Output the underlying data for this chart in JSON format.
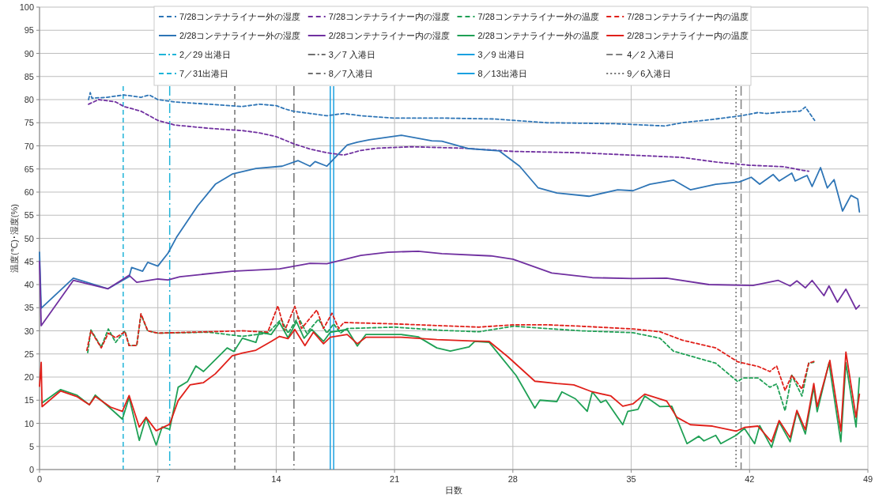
{
  "chart_data": {
    "type": "line",
    "xlabel": "日数",
    "ylabel": "温度(℃)･湿度(%)",
    "xlim": [
      0,
      49
    ],
    "ylim": [
      0,
      100
    ],
    "xticks": [
      0,
      7,
      14,
      21,
      28,
      35,
      42,
      49
    ],
    "yticks": [
      0,
      5,
      10,
      15,
      20,
      25,
      30,
      35,
      40,
      45,
      50,
      55,
      60,
      65,
      70,
      75,
      80,
      85,
      90,
      95,
      100
    ],
    "grid": true,
    "legend": "top",
    "series": [
      {
        "name": "7/28コンテナライナー外の湿度",
        "color": "#2e75b6",
        "line_style": "dashed",
        "x": [
          2.9,
          3.0,
          3.1,
          4,
          5,
          6,
          6.5,
          7,
          8,
          10,
          12,
          13,
          14,
          14.5,
          15,
          16,
          17,
          18,
          19,
          21,
          24,
          27,
          30,
          34,
          37,
          38,
          40,
          41.5,
          42.5,
          43,
          44,
          45,
          45.3,
          45.85
        ],
        "values": [
          80,
          81.5,
          80.3,
          80.5,
          81,
          80.5,
          81,
          80,
          79.5,
          79,
          78.5,
          79,
          78.7,
          78,
          77.5,
          77,
          76.5,
          77,
          76.5,
          76,
          76,
          75.8,
          75,
          74.8,
          74.3,
          75,
          75.8,
          76.5,
          77.2,
          77,
          77.3,
          77.5,
          78.4,
          75.5
        ]
      },
      {
        "name": "7/28コンテナライナー内の湿度",
        "color": "#7030a0",
        "line_style": "dashed",
        "x": [
          2.9,
          3.5,
          4.5,
          5,
          6,
          7,
          8,
          10,
          12,
          13,
          14,
          15,
          16,
          17,
          18,
          19,
          20,
          22,
          25,
          28,
          32,
          35,
          38,
          40,
          42,
          44,
          45,
          45.5
        ],
        "values": [
          79,
          80,
          79.5,
          78.5,
          77.5,
          75.5,
          74.5,
          73.8,
          73.3,
          72.8,
          72,
          70.5,
          69.3,
          68.5,
          68,
          69,
          69.5,
          69.8,
          69.5,
          68.8,
          68.5,
          68,
          67.5,
          66.5,
          65.8,
          65.5,
          64.8,
          64.5
        ]
      },
      {
        "name": "7/28コンテナライナー外の温度",
        "color": "#1fa055",
        "line_style": "dashed",
        "x": [
          2.85,
          3.04,
          3.65,
          4.07,
          4.5,
          5.05,
          5.3,
          5.75,
          6.0,
          6.4,
          7,
          10,
          12,
          13.5,
          14.3,
          14.7,
          15.3,
          15.8,
          16.5,
          17,
          17.4,
          17.8,
          18.2,
          21,
          23.8,
          26,
          28.05,
          30,
          32,
          35.1,
          36.7,
          37.5,
          40,
          41.3,
          41.6,
          42.5,
          43.2,
          43.6,
          44.1,
          44.5,
          45.1,
          45.5,
          45.8
        ],
        "values": [
          25.3,
          30.2,
          26.5,
          30.4,
          27.5,
          30,
          26.8,
          26.8,
          33.5,
          30,
          29.5,
          29.7,
          28.8,
          29.5,
          32.5,
          29.5,
          33,
          29.5,
          32.5,
          29.5,
          31.5,
          29.5,
          30.5,
          30.8,
          30.1,
          29.8,
          31,
          30.5,
          30,
          29.6,
          28.4,
          25.6,
          23,
          19,
          19.8,
          19.8,
          17.8,
          18.5,
          12.7,
          20.4,
          15.9,
          23,
          23.2
        ]
      },
      {
        "name": "7/28コンテナライナー内の温度",
        "color": "#e0201a",
        "line_style": "dashed",
        "x": [
          2.8,
          3.04,
          3.65,
          4.07,
          4.5,
          5.05,
          5.3,
          5.75,
          6.0,
          6.4,
          7,
          10,
          12,
          13.5,
          14.1,
          14.5,
          15.1,
          15.5,
          16.4,
          16.8,
          17.3,
          17.7,
          18,
          21,
          23.8,
          26,
          28,
          30,
          32,
          35.1,
          36.7,
          38,
          40,
          41.3,
          42.5,
          43.2,
          43.6,
          44.1,
          44.5,
          45.1,
          45.5,
          45.9
        ],
        "values": [
          25.8,
          30,
          26.3,
          29.5,
          28.5,
          29.8,
          26.8,
          26.8,
          33.7,
          30,
          29.5,
          29.8,
          30,
          29.7,
          35.4,
          30,
          35.3,
          30.5,
          34.5,
          30.5,
          33.8,
          30.5,
          31.8,
          31.5,
          31.1,
          30.8,
          31.3,
          31.3,
          31,
          30.4,
          29.8,
          28,
          26.3,
          23.3,
          22.3,
          21.2,
          22.4,
          17.1,
          20.4,
          17.4,
          23,
          23.5
        ]
      },
      {
        "name": "2/28コンテナライナー外の湿度",
        "color": "#2e75b6",
        "line_style": "solid",
        "x": [
          0,
          0.1,
          2.0,
          4.05,
          5.3,
          5.45,
          6.1,
          6.4,
          7.0,
          7.6,
          8.1,
          9.35,
          10.4,
          11.4,
          12.8,
          14.35,
          15.3,
          16.0,
          16.3,
          17.0,
          18.2,
          18.8,
          19.5,
          21.4,
          23.2,
          23.8,
          25.4,
          27.2,
          28.4,
          29.5,
          30.6,
          32.5,
          34.2,
          35.1,
          36.1,
          37.5,
          38.5,
          40,
          41.4,
          42.1,
          42.6,
          43.4,
          43.75,
          44.5,
          44.7,
          45.4,
          45.7,
          46.2,
          46.6,
          47.0,
          47.5,
          48.0,
          48.4,
          48.5
        ],
        "values": [
          47,
          34.9,
          41.4,
          39.1,
          41.7,
          43.7,
          42.9,
          44.8,
          44,
          46.8,
          50.2,
          57,
          61.7,
          63.9,
          65.1,
          65.6,
          66.8,
          65.6,
          66.6,
          65.6,
          70.2,
          70.8,
          71.3,
          72.3,
          71.1,
          71,
          69.4,
          68.9,
          65.6,
          60.9,
          59.8,
          59.1,
          60.5,
          60.3,
          61.7,
          62.6,
          60.5,
          61.7,
          62.2,
          63.2,
          61.7,
          63.8,
          62.4,
          64.1,
          62.4,
          63.6,
          61.2,
          65.3,
          60.9,
          62.7,
          55.9,
          59.3,
          58.5,
          55.7
        ]
      },
      {
        "name": "2/28コンテナライナー内の湿度",
        "color": "#7030a0",
        "line_style": "solid",
        "x": [
          0,
          0.1,
          2.0,
          4.05,
          5.3,
          5.75,
          7.0,
          7.6,
          8.3,
          11.4,
          14.2,
          16.0,
          17.0,
          19.0,
          20.6,
          22.4,
          23.8,
          26.7,
          28.0,
          30.3,
          32.7,
          35.1,
          37.1,
          39.6,
          42.2,
          43.7,
          44.4,
          44.8,
          45.3,
          45.7,
          46.4,
          46.7,
          47.2,
          47.7,
          48.3,
          48.5
        ],
        "values": [
          45,
          31.1,
          40.9,
          39.1,
          42,
          40.5,
          41.2,
          41,
          41.7,
          42.9,
          43.4,
          44.6,
          44.5,
          46.3,
          47,
          47.2,
          46.7,
          46.2,
          45.5,
          42.5,
          41.5,
          41.3,
          41.4,
          40,
          39.8,
          40.9,
          39.7,
          40.8,
          39.3,
          40.9,
          37.6,
          39.7,
          36.2,
          39,
          34.7,
          35.5
        ]
      },
      {
        "name": "2/28コンテナライナー外の温度",
        "color": "#1fa055",
        "line_style": "solid",
        "x": [
          0.15,
          1.25,
          2.2,
          2.95,
          3.3,
          4.2,
          4.9,
          5.3,
          5.9,
          6.3,
          6.9,
          7.25,
          7.7,
          8.2,
          8.75,
          9.25,
          9.7,
          11.1,
          11.5,
          12.0,
          12.8,
          13.0,
          13.7,
          14.2,
          14.7,
          15.2,
          15.65,
          16.1,
          16.8,
          17.2,
          18.2,
          18.8,
          19.3,
          21.4,
          22.4,
          23.5,
          24.3,
          25.4,
          25.75,
          26.6,
          27.2,
          28.2,
          29.3,
          29.6,
          30.6,
          30.9,
          31.7,
          32.4,
          32.7,
          33.2,
          33.5,
          34.5,
          34.8,
          35.4,
          35.8,
          36.7,
          37.4,
          38.3,
          39.0,
          39.3,
          40.0,
          40.3,
          41.2,
          41.7,
          42.3,
          42.6,
          43.3,
          43.75,
          44.4,
          44.8,
          45.3,
          45.8,
          46.0,
          46.7,
          47.4,
          47.7,
          48.3,
          48.5
        ],
        "values": [
          14.4,
          17.3,
          16.1,
          14,
          16.1,
          13.2,
          10.9,
          15.6,
          6.3,
          11.3,
          5.3,
          9.2,
          8.7,
          17.8,
          19,
          22.4,
          21.2,
          26.3,
          25.5,
          28.4,
          27.5,
          29.7,
          29.2,
          31.8,
          28.5,
          32,
          28.4,
          30.3,
          27.7,
          29.7,
          30.3,
          26.7,
          29.2,
          29.2,
          28.7,
          26.3,
          25.6,
          26.5,
          27.7,
          27.5,
          24.8,
          20.3,
          13.3,
          15,
          14.7,
          16.8,
          15.3,
          12.6,
          16.8,
          14.5,
          15,
          9.7,
          12.6,
          13,
          15.9,
          13.6,
          13.7,
          5.6,
          7.2,
          6.2,
          7.4,
          5.6,
          7.4,
          8.9,
          5.6,
          9.5,
          4.8,
          10.3,
          6,
          12.5,
          7.7,
          17.8,
          12.5,
          23.1,
          6,
          23.1,
          9.2,
          19.8
        ]
      },
      {
        "name": "2/28コンテナライナー内の温度",
        "color": "#e0201a",
        "line_style": "solid",
        "x": [
          0,
          0.1,
          0.15,
          1.25,
          2.2,
          2.95,
          3.3,
          4.2,
          4.9,
          5.3,
          5.9,
          6.3,
          6.9,
          7.7,
          8.2,
          8.9,
          9.7,
          10.4,
          11.4,
          12.0,
          12.8,
          13.7,
          14.2,
          14.7,
          15.1,
          15.7,
          16.2,
          16.8,
          17.2,
          18.2,
          18.8,
          19.3,
          21.4,
          23.5,
          25.6,
          26.6,
          27.7,
          29.3,
          30.6,
          31.6,
          32.7,
          33.8,
          34.5,
          35.1,
          35.8,
          37.1,
          37.7,
          38.5,
          39.8,
          41.2,
          41.7,
          42.5,
          43.3,
          43.75,
          44.4,
          44.8,
          45.3,
          45.8,
          46.0,
          46.75,
          47.4,
          47.7,
          48.3,
          48.5
        ],
        "values": [
          18,
          23.2,
          13.6,
          17,
          15.8,
          14,
          15.8,
          13.5,
          12.6,
          16,
          9.2,
          11.3,
          8.4,
          9.8,
          14.9,
          18.3,
          18.8,
          20.7,
          24.6,
          25.2,
          25.8,
          27.7,
          28.8,
          28.3,
          30.3,
          26.8,
          29.7,
          27.2,
          28.6,
          29.2,
          27.2,
          28.6,
          28.6,
          28.1,
          27.8,
          27.7,
          24.4,
          19.1,
          18.6,
          18.3,
          16.8,
          15.9,
          13.7,
          14.2,
          16.3,
          14.8,
          11.3,
          9.7,
          9.4,
          8.3,
          9.1,
          9.4,
          6,
          10.6,
          6.9,
          12.8,
          8.6,
          18.6,
          13.6,
          23.6,
          8.3,
          25.4,
          11.3,
          16.3
        ]
      }
    ],
    "ref_lines": [
      {
        "axis": "x",
        "value": 7.7,
        "label": "2／29 出港日",
        "color": "#1fb4d8",
        "line_style": "dashdot"
      },
      {
        "axis": "x",
        "value": 15.05,
        "label": "3／7 入港日",
        "color": "#707070",
        "line_style": "dashdot"
      },
      {
        "axis": "x",
        "value": 17.2,
        "label": "3／9 出港日",
        "color": "#1aa0e0",
        "line_style": "solid"
      },
      {
        "axis": "x",
        "value": 41.5,
        "label": "4／2 入港日",
        "color": "#808080",
        "line_style": "longdash"
      },
      {
        "axis": "x",
        "value": 4.95,
        "label": "7／31出港日",
        "color": "#1fb4d8",
        "line_style": "dashed"
      },
      {
        "axis": "x",
        "value": 11.55,
        "label": "8／7入港日",
        "color": "#707070",
        "line_style": "dashed"
      },
      {
        "axis": "x",
        "value": 17.4,
        "label": "8／13出港日",
        "color": "#1aa0e0",
        "line_style": "solid"
      },
      {
        "axis": "x",
        "value": 41.2,
        "label": "9／6入港日",
        "color": "#707070",
        "line_style": "dotted"
      }
    ]
  }
}
